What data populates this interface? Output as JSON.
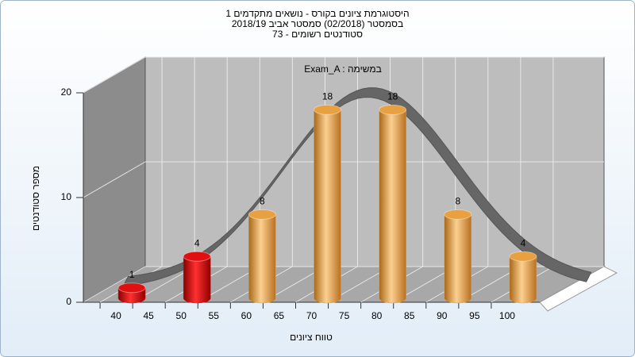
{
  "chart_data": {
    "type": "bar",
    "title": [
      "היסטוגרמת ציונים בקורס - נושאים מתקדמים 1",
      "בסמסטר (02/2018)  סמסטר אביב 2018/19",
      "סטודנטים רשומים - 73"
    ],
    "annotation": "Exam_A : במשימה",
    "x_label": "טווח ציונים",
    "y_label": "מספר סטודנטים",
    "x": [
      40,
      50,
      60,
      70,
      80,
      90,
      100
    ],
    "values": [
      1,
      4,
      8,
      18,
      18,
      8,
      4
    ],
    "colors": [
      "#e01010",
      "#e01010",
      "#e8a040",
      "#e8a040",
      "#e8a040",
      "#e8a040",
      "#e8a040"
    ],
    "xlim": [
      35,
      105
    ],
    "xticks": [
      40,
      45,
      50,
      55,
      60,
      65,
      70,
      75,
      80,
      85,
      90,
      95,
      100
    ],
    "ylim": [
      0,
      20
    ],
    "yticks": [
      0,
      10,
      20
    ],
    "grid": true
  }
}
